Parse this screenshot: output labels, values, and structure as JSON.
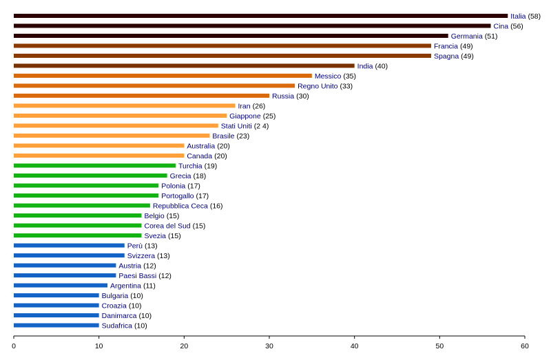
{
  "chart_data": {
    "type": "bar",
    "orientation": "horizontal",
    "title": "",
    "xlabel": "",
    "ylabel": "",
    "xlim": [
      0,
      60
    ],
    "xticks": [
      "0",
      "10",
      "20",
      "30",
      "40",
      "50",
      "60"
    ],
    "grid": false,
    "legend": "none",
    "categories": [
      "Italia",
      "Cina",
      "Germania",
      "Francia",
      "Spagna",
      "India",
      "Messico",
      "Regno Unito",
      "Russia",
      "Iran",
      "Giappone",
      "Stati Uniti",
      "Brasile",
      "Australia",
      "Canada",
      "Turchia",
      "Grecia",
      "Polonia",
      "Portogallo",
      "Repubblica Ceca",
      "Belgio",
      "Corea del Sud",
      "Svezia",
      "Perù",
      "Svizzera",
      "Austria",
      "Paesi Bassi",
      "Argentina",
      "Bulgaria",
      "Croazia",
      "Danimarca",
      "Sudafrica"
    ],
    "values": [
      58,
      56,
      51,
      49,
      49,
      40,
      35,
      33,
      30,
      26,
      25,
      24,
      23,
      20,
      20,
      19,
      18,
      17,
      17,
      16,
      15,
      15,
      15,
      13,
      13,
      12,
      12,
      11,
      10,
      10,
      10,
      10
    ],
    "value_labels": [
      "(58)",
      "(56)",
      "(51)",
      "(49)",
      "(49)",
      "(40)",
      "(35)",
      "(33)",
      "(30)",
      "(26)",
      "(25)",
      "(2 4)",
      "(23)",
      "(20)",
      "(20)",
      "(19)",
      "(18)",
      "(17)",
      "(17)",
      "(16)",
      "(15)",
      "(15)",
      "(15)",
      "(13)",
      "(13)",
      "(12)",
      "(12)",
      "(11)",
      "(10)",
      "(10)",
      "(10)",
      "(10)"
    ],
    "bar_colors": [
      "#2b0000",
      "#2b0000",
      "#2b0000",
      "#8b3a00",
      "#8b3a00",
      "#7a3300",
      "#d96b0c",
      "#d96b0c",
      "#d96b0c",
      "#ffa03a",
      "#ffa03a",
      "#ffa03a",
      "#ffa03a",
      "#ffa03a",
      "#ffa03a",
      "#12b312",
      "#12b312",
      "#12b312",
      "#12b312",
      "#12b312",
      "#12b312",
      "#12b312",
      "#12b312",
      "#1464c8",
      "#1464c8",
      "#1464c8",
      "#1464c8",
      "#1464c8",
      "#1464c8",
      "#1464c8",
      "#1464c8",
      "#1464c8"
    ],
    "label_color": "#00008b"
  }
}
